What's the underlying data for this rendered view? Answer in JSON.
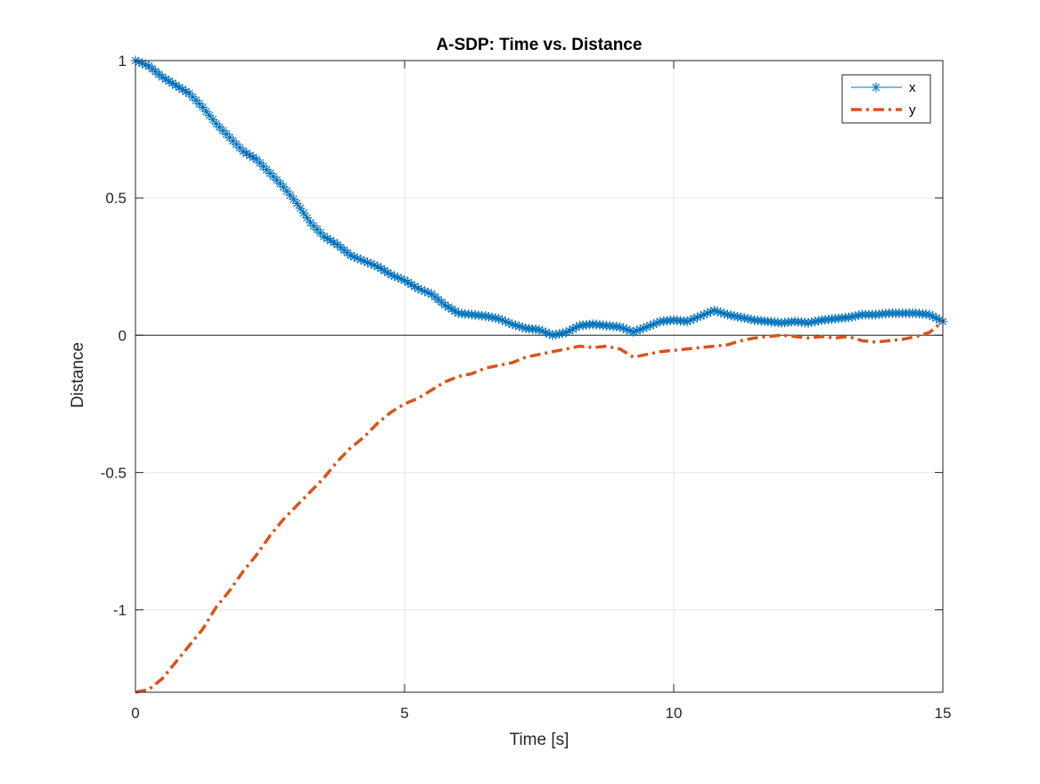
{
  "chart_data": {
    "type": "line",
    "title": "A-SDP: Time vs. Distance",
    "xlabel": "Time [s]",
    "ylabel": "Distance",
    "xlim": [
      0,
      15
    ],
    "ylim": [
      -1.3,
      1.0
    ],
    "xticks": [
      0,
      5,
      10,
      15
    ],
    "xtick_labels": [
      "0",
      "5",
      "10",
      "15"
    ],
    "yticks": [
      -1,
      -0.5,
      0,
      0.5,
      1
    ],
    "ytick_labels": [
      "-1",
      "-0.5",
      "0",
      "0.5",
      "1"
    ],
    "grid": true,
    "zero_line": true,
    "legend_position": "top-right",
    "colors": {
      "x": "#0072BD",
      "y": "#D95319",
      "grid": "#e6e6e6",
      "axes": "#262626"
    },
    "series": [
      {
        "name": "x",
        "style": "solid-asterisk",
        "color": "#0072BD",
        "points": [
          [
            0,
            1.0
          ],
          [
            0.25,
            0.98
          ],
          [
            0.5,
            0.94
          ],
          [
            0.75,
            0.91
          ],
          [
            1.0,
            0.88
          ],
          [
            1.25,
            0.83
          ],
          [
            1.5,
            0.77
          ],
          [
            1.75,
            0.72
          ],
          [
            2.0,
            0.67
          ],
          [
            2.25,
            0.64
          ],
          [
            2.5,
            0.59
          ],
          [
            2.75,
            0.54
          ],
          [
            3.0,
            0.48
          ],
          [
            3.25,
            0.41
          ],
          [
            3.5,
            0.36
          ],
          [
            3.75,
            0.33
          ],
          [
            4.0,
            0.29
          ],
          [
            4.25,
            0.27
          ],
          [
            4.5,
            0.25
          ],
          [
            4.75,
            0.22
          ],
          [
            5.0,
            0.2
          ],
          [
            5.25,
            0.17
          ],
          [
            5.5,
            0.15
          ],
          [
            5.75,
            0.11
          ],
          [
            6.0,
            0.08
          ],
          [
            6.25,
            0.075
          ],
          [
            6.5,
            0.07
          ],
          [
            6.75,
            0.06
          ],
          [
            7.0,
            0.04
          ],
          [
            7.25,
            0.025
          ],
          [
            7.5,
            0.02
          ],
          [
            7.75,
            0.0
          ],
          [
            8.0,
            0.01
          ],
          [
            8.25,
            0.035
          ],
          [
            8.5,
            0.04
          ],
          [
            8.75,
            0.035
          ],
          [
            9.0,
            0.03
          ],
          [
            9.25,
            0.012
          ],
          [
            9.5,
            0.03
          ],
          [
            9.75,
            0.05
          ],
          [
            10.0,
            0.055
          ],
          [
            10.25,
            0.05
          ],
          [
            10.5,
            0.07
          ],
          [
            10.75,
            0.09
          ],
          [
            11.0,
            0.075
          ],
          [
            11.25,
            0.065
          ],
          [
            11.5,
            0.055
          ],
          [
            11.75,
            0.05
          ],
          [
            12.0,
            0.045
          ],
          [
            12.25,
            0.05
          ],
          [
            12.5,
            0.045
          ],
          [
            12.75,
            0.055
          ],
          [
            13.0,
            0.06
          ],
          [
            13.25,
            0.065
          ],
          [
            13.5,
            0.075
          ],
          [
            13.75,
            0.075
          ],
          [
            14.0,
            0.08
          ],
          [
            14.25,
            0.08
          ],
          [
            14.5,
            0.08
          ],
          [
            14.75,
            0.075
          ],
          [
            15.0,
            0.05
          ]
        ]
      },
      {
        "name": "y",
        "style": "dash-dot",
        "color": "#D95319",
        "points": [
          [
            0,
            -1.3
          ],
          [
            0.25,
            -1.29
          ],
          [
            0.5,
            -1.25
          ],
          [
            0.75,
            -1.19
          ],
          [
            1.0,
            -1.13
          ],
          [
            1.25,
            -1.07
          ],
          [
            1.5,
            -0.99
          ],
          [
            1.75,
            -0.93
          ],
          [
            2.0,
            -0.86
          ],
          [
            2.25,
            -0.8
          ],
          [
            2.5,
            -0.73
          ],
          [
            2.75,
            -0.67
          ],
          [
            3.0,
            -0.62
          ],
          [
            3.25,
            -0.57
          ],
          [
            3.5,
            -0.52
          ],
          [
            3.75,
            -0.46
          ],
          [
            4.0,
            -0.41
          ],
          [
            4.25,
            -0.37
          ],
          [
            4.5,
            -0.32
          ],
          [
            4.75,
            -0.28
          ],
          [
            5.0,
            -0.25
          ],
          [
            5.25,
            -0.23
          ],
          [
            5.5,
            -0.2
          ],
          [
            5.75,
            -0.17
          ],
          [
            6.0,
            -0.15
          ],
          [
            6.25,
            -0.14
          ],
          [
            6.5,
            -0.12
          ],
          [
            6.75,
            -0.11
          ],
          [
            7.0,
            -0.1
          ],
          [
            7.25,
            -0.08
          ],
          [
            7.5,
            -0.07
          ],
          [
            7.75,
            -0.06
          ],
          [
            8.0,
            -0.05
          ],
          [
            8.25,
            -0.04
          ],
          [
            8.5,
            -0.045
          ],
          [
            8.75,
            -0.04
          ],
          [
            9.0,
            -0.05
          ],
          [
            9.25,
            -0.08
          ],
          [
            9.5,
            -0.07
          ],
          [
            9.75,
            -0.06
          ],
          [
            10.0,
            -0.055
          ],
          [
            10.25,
            -0.05
          ],
          [
            10.5,
            -0.045
          ],
          [
            10.75,
            -0.04
          ],
          [
            11.0,
            -0.035
          ],
          [
            11.25,
            -0.02
          ],
          [
            11.5,
            -0.01
          ],
          [
            11.75,
            -0.005
          ],
          [
            12.0,
            0.0
          ],
          [
            12.25,
            -0.005
          ],
          [
            12.5,
            -0.01
          ],
          [
            12.75,
            -0.005
          ],
          [
            13.0,
            -0.01
          ],
          [
            13.25,
            -0.005
          ],
          [
            13.5,
            -0.02
          ],
          [
            13.75,
            -0.025
          ],
          [
            14.0,
            -0.02
          ],
          [
            14.25,
            -0.015
          ],
          [
            14.5,
            -0.005
          ],
          [
            14.75,
            0.01
          ],
          [
            15.0,
            0.05
          ]
        ]
      }
    ]
  }
}
